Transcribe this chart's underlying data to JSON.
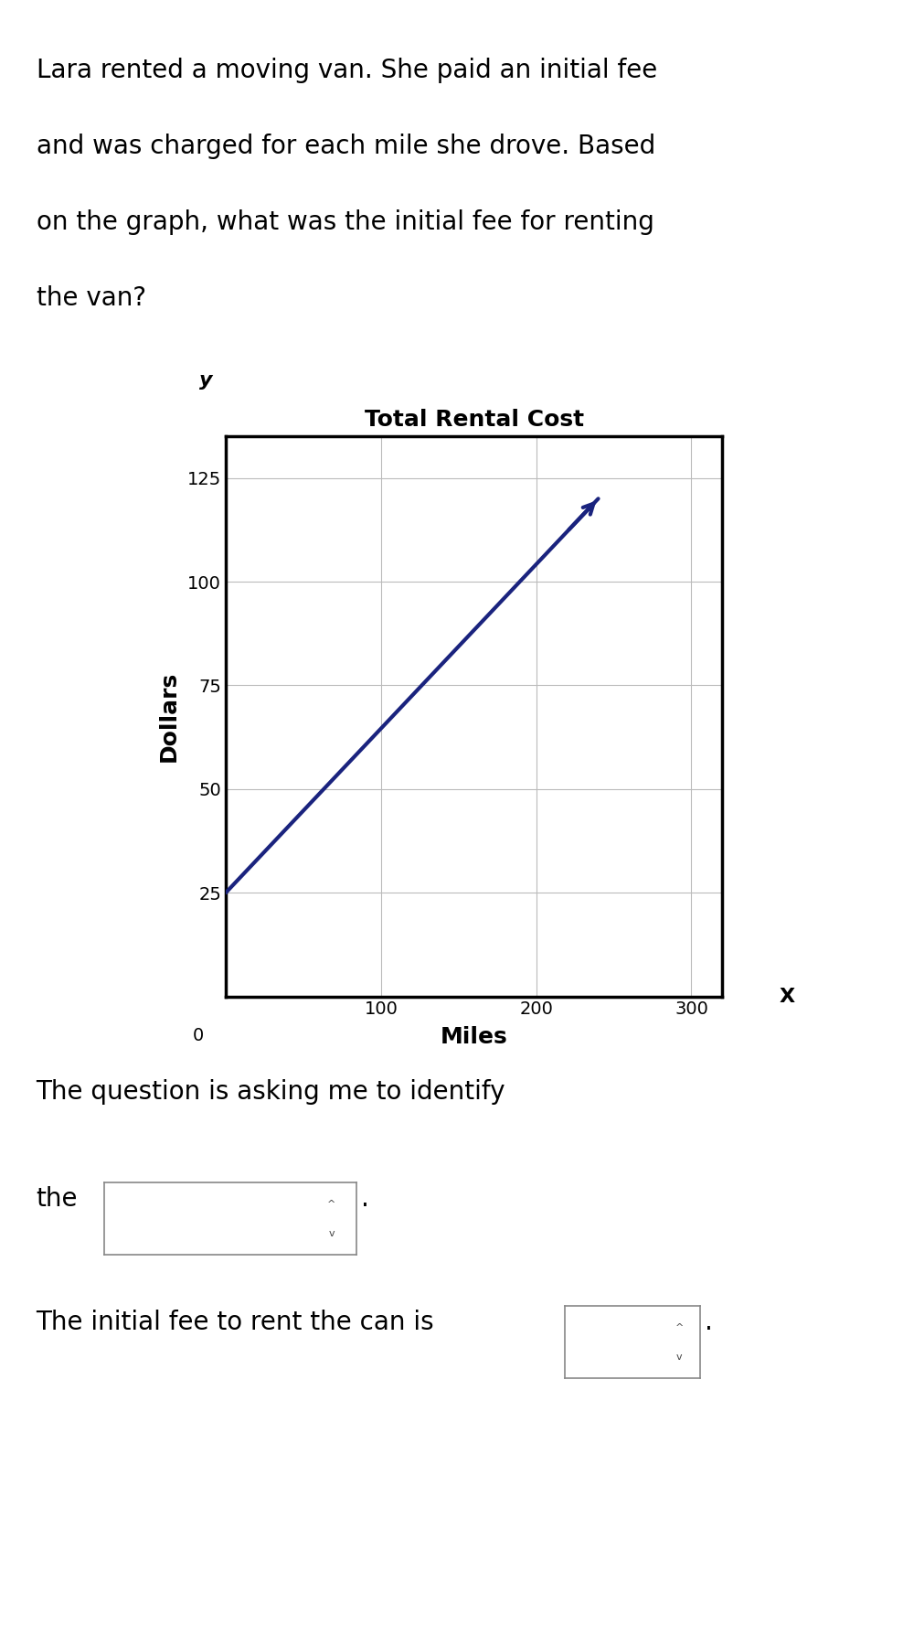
{
  "title_text": "Total Rental Cost",
  "paragraph_lines": [
    "Lara rented a moving van. She paid an initial fee",
    "and was charged for each mile she drove. Based",
    "on the graph, what was the initial fee for renting",
    "the van?"
  ],
  "xlabel": "Miles",
  "ylabel": "Dollars",
  "x_axis_label": "X",
  "y_axis_label": "y",
  "xlim": [
    0,
    320
  ],
  "ylim": [
    0,
    135
  ],
  "xticks": [
    100,
    200,
    300
  ],
  "yticks": [
    25,
    50,
    75,
    100,
    125
  ],
  "line_x": [
    0,
    240
  ],
  "line_y": [
    25,
    120
  ],
  "line_color": "#1a237e",
  "line_width": 3.0,
  "grid_color": "#bbbbbb",
  "background_color": "#ffffff",
  "text_color": "#000000",
  "question_line1": "The question is asking me to identify",
  "question_line2_prefix": "the",
  "question_line3_prefix": "The initial fee to rent the can is",
  "box_color": "#ffffff",
  "box_border_color": "#888888",
  "font_size_paragraph": 20,
  "font_size_title": 18,
  "font_size_tick": 14,
  "font_size_question": 20,
  "font_size_axis_letter": 16
}
